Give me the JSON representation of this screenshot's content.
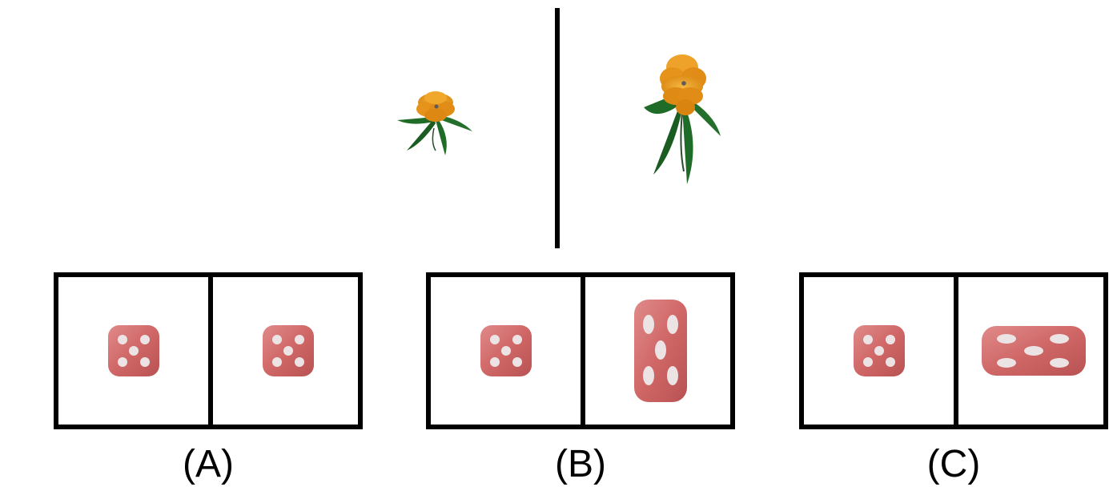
{
  "question": {
    "left_image": {
      "icon": "flower-small",
      "petal_color": "#e89a1e",
      "leaf_color": "#1f6b28"
    },
    "right_image": {
      "icon": "flower-large",
      "petal_color": "#e89a1e",
      "leaf_color": "#1f6b28"
    }
  },
  "options": [
    {
      "label": "(A)",
      "left": {
        "icon": "die-five"
      },
      "right": {
        "icon": "die-five"
      }
    },
    {
      "label": "(B)",
      "left": {
        "icon": "die-five"
      },
      "right": {
        "icon": "die-five-stretched-vertical"
      }
    },
    {
      "label": "(C)",
      "left": {
        "icon": "die-five"
      },
      "right": {
        "icon": "die-five-stretched-horizontal"
      }
    }
  ],
  "colors": {
    "die_face": "#d06a6a",
    "die_pip": "#ece4e4",
    "border": "#000000"
  }
}
